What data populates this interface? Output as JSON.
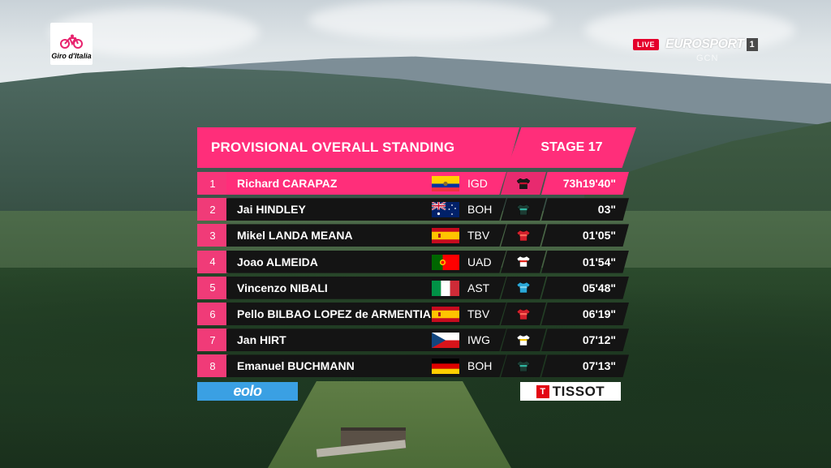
{
  "broadcast": {
    "live_label": "LIVE",
    "channel_name": "EUROSPORT",
    "channel_number": "1",
    "co_brand": "GCN",
    "event_logo_text": "Giro d'Italia"
  },
  "standings": {
    "title": "PROVISIONAL OVERALL STANDING",
    "stage_label": "STAGE 17",
    "rows": [
      {
        "rank": "1",
        "name": "Richard CARAPAZ",
        "team": "IGD",
        "time": "73h19'40\"",
        "flag": "ecuador-flag",
        "jersey": "ineos-jersey-icon"
      },
      {
        "rank": "2",
        "name": "Jai HINDLEY",
        "team": "BOH",
        "time": "03\"",
        "flag": "australia-flag",
        "jersey": "bora-jersey-icon"
      },
      {
        "rank": "3",
        "name": "Mikel LANDA MEANA",
        "team": "TBV",
        "time": "01'05\"",
        "flag": "spain-flag",
        "jersey": "bahrain-jersey-icon"
      },
      {
        "rank": "4",
        "name": "Joao ALMEIDA",
        "team": "UAD",
        "time": "01'54\"",
        "flag": "portugal-flag",
        "jersey": "uae-jersey-icon"
      },
      {
        "rank": "5",
        "name": "Vincenzo NIBALI",
        "team": "AST",
        "time": "05'48\"",
        "flag": "italy-flag",
        "jersey": "astana-jersey-icon"
      },
      {
        "rank": "6",
        "name": "Pello BILBAO LOPEZ de ARMENTIA",
        "team": "TBV",
        "time": "06'19\"",
        "flag": "spain-flag",
        "jersey": "bahrain-jersey-icon"
      },
      {
        "rank": "7",
        "name": "Jan HIRT",
        "team": "IWG",
        "time": "07'12\"",
        "flag": "czech-flag",
        "jersey": "intermarche-jersey-icon"
      },
      {
        "rank": "8",
        "name": "Emanuel BUCHMANN",
        "team": "BOH",
        "time": "07'13\"",
        "flag": "germany-flag",
        "jersey": "bora-jersey-icon"
      }
    ]
  },
  "sponsors": {
    "left": "eolo",
    "right": "TISSOT",
    "right_mark": "T"
  },
  "colors": {
    "accent_pink": "#ff2e7a",
    "row_dark": "#141414",
    "eolo_blue": "#3aa0e3",
    "tissot_red": "#e30613"
  }
}
